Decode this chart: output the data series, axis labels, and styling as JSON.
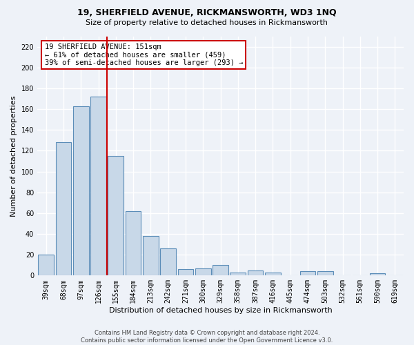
{
  "title": "19, SHERFIELD AVENUE, RICKMANSWORTH, WD3 1NQ",
  "subtitle": "Size of property relative to detached houses in Rickmansworth",
  "xlabel": "Distribution of detached houses by size in Rickmansworth",
  "ylabel": "Number of detached properties",
  "footer_line1": "Contains HM Land Registry data © Crown copyright and database right 2024.",
  "footer_line2": "Contains public sector information licensed under the Open Government Licence v3.0.",
  "categories": [
    "39sqm",
    "68sqm",
    "97sqm",
    "126sqm",
    "155sqm",
    "184sqm",
    "213sqm",
    "242sqm",
    "271sqm",
    "300sqm",
    "329sqm",
    "358sqm",
    "387sqm",
    "416sqm",
    "445sqm",
    "474sqm",
    "503sqm",
    "532sqm",
    "561sqm",
    "590sqm",
    "619sqm"
  ],
  "values": [
    20,
    128,
    163,
    172,
    115,
    62,
    38,
    26,
    6,
    7,
    10,
    3,
    5,
    3,
    0,
    4,
    4,
    0,
    0,
    2,
    0
  ],
  "bar_color": "#c8d8e8",
  "bar_edge_color": "#5b8db8",
  "background_color": "#eef2f8",
  "grid_color": "#ffffff",
  "ann_line1": "19 SHERFIELD AVENUE: 151sqm",
  "ann_line2": "← 61% of detached houses are smaller (459)",
  "ann_line3": "39% of semi-detached houses are larger (293) →",
  "vline_index": 4,
  "vline_color": "#cc0000",
  "ylim": [
    0,
    230
  ],
  "yticks": [
    0,
    20,
    40,
    60,
    80,
    100,
    120,
    140,
    160,
    180,
    200,
    220
  ],
  "title_fontsize": 9,
  "subtitle_fontsize": 8,
  "ylabel_fontsize": 8,
  "xlabel_fontsize": 8,
  "tick_fontsize": 7,
  "ann_fontsize": 7.5,
  "footer_fontsize": 6
}
